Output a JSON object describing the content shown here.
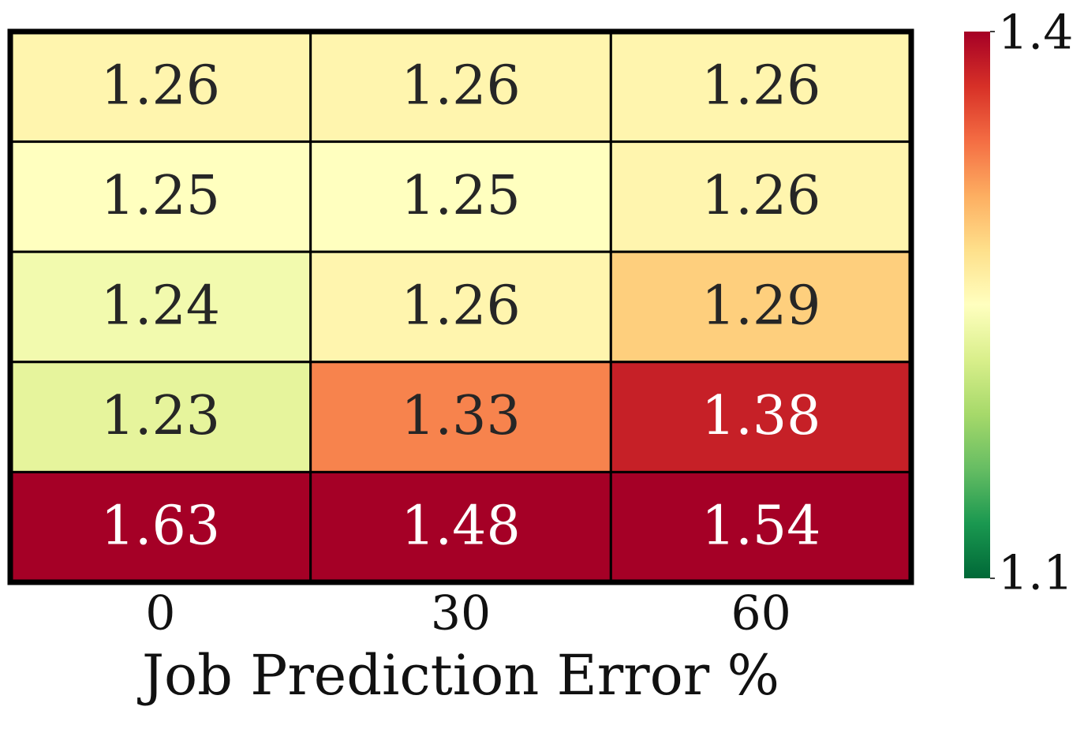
{
  "chart_data": {
    "type": "heatmap",
    "x_label": "Job Prediction Error %",
    "categories": [
      "0",
      "30",
      "60"
    ],
    "values": [
      [
        1.26,
        1.26,
        1.26
      ],
      [
        1.25,
        1.25,
        1.26
      ],
      [
        1.24,
        1.26,
        1.29
      ],
      [
        1.23,
        1.33,
        1.38
      ],
      [
        1.63,
        1.48,
        1.54
      ]
    ],
    "colormap": [
      "#006837",
      "#1a9850",
      "#66bd63",
      "#a6d96a",
      "#d9ef8b",
      "#ffffbf",
      "#fee08b",
      "#fdae61",
      "#f46d43",
      "#d73027",
      "#a50026"
    ],
    "zlim": [
      1.1,
      1.4
    ],
    "zticks": [
      1.1,
      1.4
    ]
  }
}
